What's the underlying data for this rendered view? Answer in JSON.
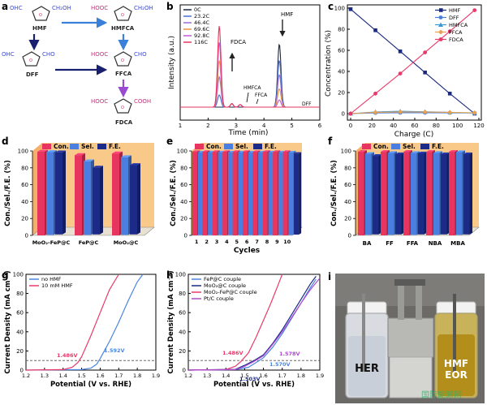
{
  "panels": {
    "a": {
      "letter": "a",
      "compounds": {
        "hmf": "HMF",
        "dff": "DFF",
        "hmfca": "HMFCA",
        "ffca": "FFCA",
        "fdca": "FDCA"
      },
      "groups": {
        "ohc": "OHC",
        "cho": "CHO",
        "ch2oh": "CH₂OH",
        "hooc": "HOOC",
        "cooh": "COOH"
      }
    },
    "b": {
      "letter": "b",
      "legend": [
        "0C",
        "23.2C",
        "46.4C",
        "69.6C",
        "92.8C",
        "116C"
      ],
      "labels": {
        "fdca": "FDCA",
        "hmf": "HMF",
        "hmfca": "HMFCA",
        "ffca": "FFCA",
        "dff": "DFF"
      }
    },
    "c": {
      "letter": "c"
    },
    "d": {
      "letter": "d",
      "legend": [
        "Con.",
        "Sel.",
        "F.E."
      ]
    },
    "e": {
      "letter": "e",
      "legend": [
        "Con.",
        "Sel.",
        "F.E."
      ]
    },
    "f": {
      "letter": "f",
      "legend": [
        "Con.",
        "Sel.",
        "F.E."
      ]
    },
    "g": {
      "letter": "g",
      "annotations": [
        "1.486V",
        "1.592V"
      ]
    },
    "h": {
      "letter": "h",
      "annotations": [
        "1.486V",
        "1.578V",
        "1.570V",
        "1.503V"
      ]
    },
    "i": {
      "letter": "i",
      "labels": {
        "her": "HER",
        "hmf": "HMF",
        "eor": "EOR"
      },
      "watermark": "国际能源网"
    }
  },
  "chart_data": [
    {
      "type": "line",
      "panel": "b",
      "xlabel": "Time (min)",
      "ylabel": "Intensity (a.u.)",
      "xlim": [
        1,
        6
      ],
      "xticks": [
        1,
        2,
        3,
        4,
        5,
        6
      ],
      "ylim": [
        0,
        1
      ],
      "series": [
        {
          "name": "0C",
          "color": "#1f2a44",
          "fdca": 0.0,
          "hmf": 0.62
        },
        {
          "name": "23.2C",
          "color": "#4a6fd6",
          "fdca": 0.12,
          "hmf": 0.46
        },
        {
          "name": "46.4C",
          "color": "#9a6fd0",
          "fdca": 0.3,
          "hmf": 0.32
        },
        {
          "name": "69.6C",
          "color": "#e89640",
          "fdca": 0.46,
          "hmf": 0.18
        },
        {
          "name": "92.8C",
          "color": "#c35ad8",
          "fdca": 0.64,
          "hmf": 0.07
        },
        {
          "name": "116C",
          "color": "#e8355f",
          "fdca": 0.8,
          "hmf": 0.0
        }
      ]
    },
    {
      "type": "line",
      "panel": "c",
      "xlabel": "Charge (C)",
      "ylabel": "Concentration (%)",
      "xlim": [
        0,
        120
      ],
      "xticks": [
        0,
        20,
        40,
        60,
        80,
        100,
        120
      ],
      "ylim": [
        0,
        100
      ],
      "yticks": [
        0,
        20,
        40,
        60,
        80,
        100
      ],
      "x": [
        0,
        23.2,
        46.4,
        69.6,
        92.8,
        116
      ],
      "series": [
        {
          "name": "HMF",
          "color": "#1a2a80",
          "marker": "square",
          "values": [
            99,
            79,
            59,
            39,
            19,
            0
          ]
        },
        {
          "name": "DFF",
          "color": "#4a7fe0",
          "marker": "circle",
          "values": [
            0,
            0.6,
            0.8,
            0.8,
            0.7,
            0.6
          ]
        },
        {
          "name": "HMFCA",
          "color": "#3a9ad8",
          "marker": "triangle",
          "values": [
            0,
            1.6,
            2.2,
            1.8,
            1.2,
            0.5
          ]
        },
        {
          "name": "FFCA",
          "color": "#e8a050",
          "marker": "diamond",
          "values": [
            0,
            1.2,
            1.6,
            1.5,
            1.2,
            0.8
          ]
        },
        {
          "name": "FDCA",
          "color": "#e83a6a",
          "marker": "circle",
          "values": [
            0,
            19,
            38,
            58,
            78,
            98
          ]
        }
      ]
    },
    {
      "type": "bar",
      "panel": "d",
      "ylabel": "Con./Sel./F.E. (%)",
      "ylim": [
        0,
        100
      ],
      "yticks": [
        0,
        20,
        40,
        60,
        80,
        100
      ],
      "categories": [
        "MoO₂-FeP@C",
        "FeP@C",
        "MoO₂@C"
      ],
      "series": [
        {
          "name": "Con.",
          "color": "#e8355f",
          "values": [
            99,
            95,
            97
          ]
        },
        {
          "name": "Sel.",
          "color": "#4a7fe0",
          "values": [
            98,
            87,
            92
          ]
        },
        {
          "name": "F.E.",
          "color": "#1c2a88",
          "values": [
            97,
            79,
            82
          ]
        }
      ]
    },
    {
      "type": "bar",
      "panel": "e",
      "xlabel": "Cycles",
      "ylabel": "Con./Sel./F.E. (%)",
      "ylim": [
        0,
        100
      ],
      "yticks": [
        0,
        20,
        40,
        60,
        80,
        100
      ],
      "categories": [
        "1",
        "2",
        "3",
        "4",
        "5",
        "6",
        "7",
        "8",
        "9",
        "10"
      ],
      "series": [
        {
          "name": "Con.",
          "color": "#e8355f",
          "values": [
            99,
            99,
            99,
            99,
            99,
            99,
            99,
            99,
            99,
            99
          ]
        },
        {
          "name": "Sel.",
          "color": "#4a7fe0",
          "values": [
            98,
            98,
            98,
            98,
            98,
            98,
            98,
            98,
            98,
            98
          ]
        },
        {
          "name": "F.E.",
          "color": "#1c2a88",
          "values": [
            97,
            96,
            97,
            96,
            97,
            96,
            97,
            96,
            96,
            96
          ]
        }
      ]
    },
    {
      "type": "bar",
      "panel": "f",
      "ylabel": "Con./Sel./F.E. (%)",
      "ylim": [
        0,
        100
      ],
      "yticks": [
        0,
        20,
        40,
        60,
        80,
        100
      ],
      "categories": [
        "BA",
        "FF",
        "FFA",
        "NBA",
        "MBA"
      ],
      "series": [
        {
          "name": "Con.",
          "color": "#e8355f",
          "values": [
            99,
            99,
            99,
            99,
            99
          ]
        },
        {
          "name": "Sel.",
          "color": "#4a7fe0",
          "values": [
            96,
            97,
            97,
            97,
            98
          ]
        },
        {
          "name": "F.E.",
          "color": "#1c2a88",
          "values": [
            93,
            95,
            96,
            95,
            95
          ]
        }
      ]
    },
    {
      "type": "line",
      "panel": "g",
      "xlabel": "Potential (V vs. RHE)",
      "ylabel": "Current Density (mA cm⁻²)",
      "xlim": [
        1.2,
        1.9
      ],
      "xticks": [
        1.2,
        1.3,
        1.4,
        1.5,
        1.6,
        1.7,
        1.8,
        1.9
      ],
      "ylim": [
        0,
        100
      ],
      "yticks": [
        0,
        20,
        40,
        60,
        80,
        100
      ],
      "reference_y": 10,
      "series": [
        {
          "name": "no HMF",
          "color": "#4a86e0",
          "x": [
            1.2,
            1.5,
            1.55,
            1.58,
            1.6,
            1.65,
            1.7,
            1.75,
            1.8,
            1.83
          ],
          "y": [
            0,
            0.5,
            2,
            6,
            12,
            30,
            50,
            72,
            92,
            100
          ]
        },
        {
          "name": "10 mM HMF",
          "color": "#e83a6a",
          "x": [
            1.2,
            1.4,
            1.45,
            1.48,
            1.5,
            1.55,
            1.6,
            1.65,
            1.7
          ],
          "y": [
            0,
            0.5,
            3,
            8,
            14,
            36,
            60,
            84,
            100
          ]
        }
      ]
    },
    {
      "type": "line",
      "panel": "h",
      "xlabel": "Potential (V vs. RHE)",
      "ylabel": "Current Density (mA cm⁻²)",
      "xlim": [
        1.2,
        1.9
      ],
      "xticks": [
        1.2,
        1.3,
        1.4,
        1.5,
        1.6,
        1.7,
        1.8,
        1.9
      ],
      "ylim": [
        0,
        100
      ],
      "yticks": [
        0,
        20,
        40,
        60,
        80,
        100
      ],
      "reference_y": 10,
      "series": [
        {
          "name": "FeP@C couple",
          "color": "#4a86e0",
          "x": [
            1.2,
            1.45,
            1.52,
            1.57,
            1.6,
            1.65,
            1.7,
            1.75,
            1.8,
            1.85,
            1.88
          ],
          "y": [
            0,
            0.5,
            3,
            9,
            13,
            24,
            38,
            54,
            70,
            86,
            95
          ]
        },
        {
          "name": "MoO₂@C couple",
          "color": "#1c2a88",
          "x": [
            1.2,
            1.45,
            1.5,
            1.55,
            1.6,
            1.65,
            1.7,
            1.75,
            1.8,
            1.85,
            1.88
          ],
          "y": [
            0,
            0.8,
            5,
            10,
            16,
            28,
            42,
            58,
            74,
            90,
            98
          ]
        },
        {
          "name": "MoO₂-FeP@C couple",
          "color": "#e83a6a",
          "x": [
            1.2,
            1.4,
            1.45,
            1.48,
            1.52,
            1.56,
            1.6,
            1.64,
            1.68,
            1.7
          ],
          "y": [
            0,
            0.6,
            4,
            9,
            18,
            34,
            52,
            70,
            90,
            100
          ]
        },
        {
          "name": "Pt/C couple",
          "color": "#b04ad0",
          "x": [
            1.2,
            1.45,
            1.5,
            1.55,
            1.6,
            1.65,
            1.7,
            1.75,
            1.8,
            1.85,
            1.9
          ],
          "y": [
            0,
            0.5,
            4,
            9,
            15,
            27,
            40,
            55,
            70,
            84,
            96
          ]
        }
      ]
    }
  ]
}
